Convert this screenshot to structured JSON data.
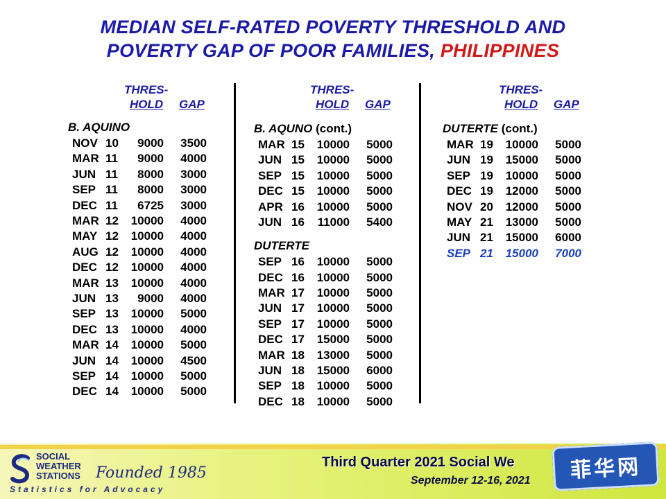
{
  "title": {
    "line1": "MEDIAN SELF-RATED POVERTY THRESHOLD AND",
    "line2_prefix": "POVERTY GAP OF POOR FAMILIES, ",
    "line2_highlight": "PHILIPPINES"
  },
  "headers": {
    "thres": "THRES-",
    "hold": "HOLD",
    "gap": "GAP"
  },
  "columns": [
    {
      "sections": [
        {
          "label": "B. AQUINO",
          "cont": "",
          "rows": [
            [
              "NOV",
              "10",
              "9000",
              "3500"
            ],
            [
              "MAR",
              "11",
              "9000",
              "4000"
            ],
            [
              "JUN",
              "11",
              "8000",
              "3000"
            ],
            [
              "SEP",
              "11",
              "8000",
              "3000"
            ],
            [
              "DEC",
              "11",
              "6725",
              "3000"
            ],
            [
              "MAR",
              "12",
              "10000",
              "4000"
            ],
            [
              "MAY",
              "12",
              "10000",
              "4000"
            ],
            [
              "AUG",
              "12",
              "10000",
              "4000"
            ],
            [
              "DEC",
              "12",
              "10000",
              "4000"
            ],
            [
              "MAR",
              "13",
              "10000",
              "4000"
            ],
            [
              "JUN",
              "13",
              "9000",
              "4000"
            ],
            [
              "SEP",
              "13",
              "10000",
              "5000"
            ],
            [
              "DEC",
              "13",
              "10000",
              "4000"
            ],
            [
              "MAR",
              "14",
              "10000",
              "5000"
            ],
            [
              "JUN",
              "14",
              "10000",
              "4500"
            ],
            [
              "SEP",
              "14",
              "10000",
              "5000"
            ],
            [
              "DEC",
              "14",
              "10000",
              "5000"
            ]
          ]
        }
      ]
    },
    {
      "sections": [
        {
          "label": "B. AQUNO",
          "cont": "(cont.)",
          "rows": [
            [
              "MAR",
              "15",
              "10000",
              "5000"
            ],
            [
              "JUN",
              "15",
              "10000",
              "5000"
            ],
            [
              "SEP",
              "15",
              "10000",
              "5000"
            ],
            [
              "DEC",
              "15",
              "10000",
              "5000"
            ],
            [
              "APR",
              "16",
              "10000",
              "5000"
            ],
            [
              "JUN",
              "16",
              "11000",
              "5400"
            ]
          ]
        },
        {
          "label": "DUTERTE",
          "cont": "",
          "rows": [
            [
              "SEP",
              "16",
              "10000",
              "5000"
            ],
            [
              "DEC",
              "16",
              "10000",
              "5000"
            ],
            [
              "MAR",
              "17",
              "10000",
              "5000"
            ],
            [
              "JUN",
              "17",
              "10000",
              "5000"
            ],
            [
              "SEP",
              "17",
              "10000",
              "5000"
            ],
            [
              "DEC",
              "17",
              "15000",
              "5000"
            ],
            [
              "MAR",
              "18",
              "13000",
              "5000"
            ],
            [
              "JUN",
              "18",
              "15000",
              "6000"
            ],
            [
              "SEP",
              "18",
              "10000",
              "5000"
            ],
            [
              "DEC",
              "18",
              "10000",
              "5000"
            ]
          ]
        }
      ]
    },
    {
      "sections": [
        {
          "label": "DUTERTE",
          "cont": "(cont.)",
          "rows": [
            [
              "MAR",
              "19",
              "10000",
              "5000"
            ],
            [
              "JUN",
              "19",
              "15000",
              "5000"
            ],
            [
              "SEP",
              "19",
              "10000",
              "5000"
            ],
            [
              "DEC",
              "19",
              "12000",
              "5000"
            ],
            [
              "NOV",
              "20",
              "12000",
              "5000"
            ],
            [
              "MAY",
              "21",
              "13000",
              "5000"
            ],
            [
              "JUN",
              "21",
              "15000",
              "6000"
            ],
            [
              "SEP",
              "21",
              "15000",
              "7000"
            ]
          ]
        }
      ]
    }
  ],
  "highlight_row": "SEP 21",
  "footer": {
    "logo_lines": [
      "SOCIAL",
      "WEATHER",
      "STATIONS"
    ],
    "founded": "Founded 1985",
    "tagline": "Statistics for Advocacy",
    "title": "Third Quarter 2021 Social We",
    "date": "September 12-16, 2021",
    "watermark": "菲华网"
  },
  "colors": {
    "title": "#1a1aa6",
    "highlight": "#d01818",
    "latest_row": "#1a3fc0",
    "footer_text": "#0b0b40",
    "watermark_bg": "#2457b5"
  }
}
